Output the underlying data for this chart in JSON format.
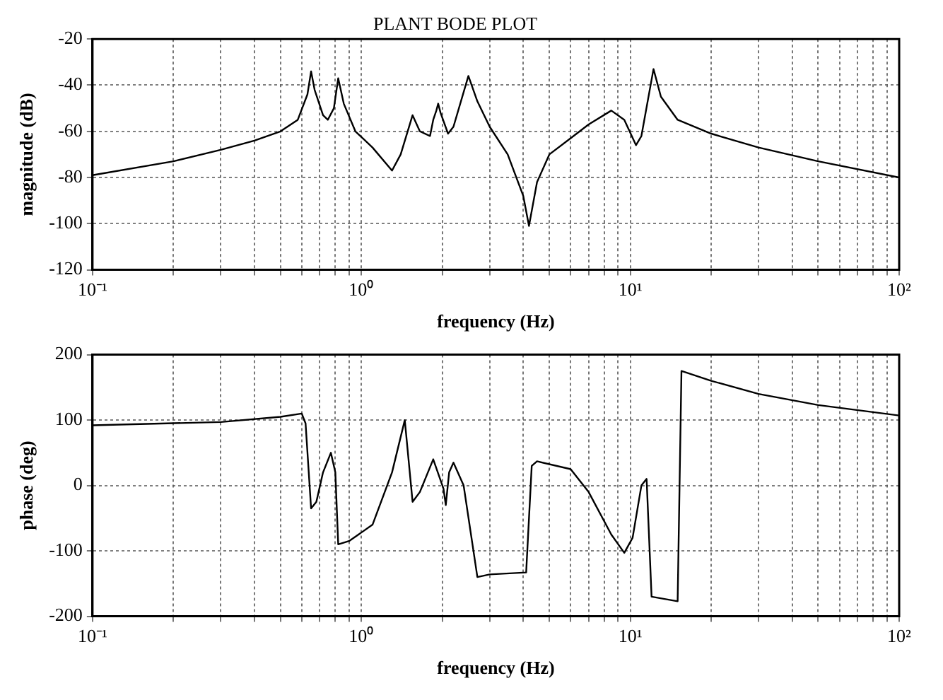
{
  "chart_data": [
    {
      "type": "line",
      "title": "PLANT BODE PLOT",
      "xlabel": "frequency (Hz)",
      "ylabel": "magnitude (dB)",
      "log": "x",
      "grid": true,
      "line_style": "solid",
      "marker": "none",
      "legend": false,
      "xlim": [
        0.1,
        100
      ],
      "xticks": [
        {
          "value": 0.1,
          "label": "10⁻¹"
        },
        {
          "value": 0.2,
          "label": null
        },
        {
          "value": 0.3,
          "label": null
        },
        {
          "value": 0.4,
          "label": null
        },
        {
          "value": 0.5,
          "label": null
        },
        {
          "value": 0.6,
          "label": null
        },
        {
          "value": 0.7,
          "label": null
        },
        {
          "value": 0.8,
          "label": null
        },
        {
          "value": 0.9,
          "label": null
        },
        {
          "value": 1,
          "label": "10⁰"
        },
        {
          "value": 2,
          "label": null
        },
        {
          "value": 3,
          "label": null
        },
        {
          "value": 4,
          "label": null
        },
        {
          "value": 5,
          "label": null
        },
        {
          "value": 6,
          "label": null
        },
        {
          "value": 7,
          "label": null
        },
        {
          "value": 8,
          "label": null
        },
        {
          "value": 9,
          "label": null
        },
        {
          "value": 10,
          "label": "10¹"
        },
        {
          "value": 20,
          "label": null
        },
        {
          "value": 30,
          "label": null
        },
        {
          "value": 40,
          "label": null
        },
        {
          "value": 50,
          "label": null
        },
        {
          "value": 60,
          "label": null
        },
        {
          "value": 70,
          "label": null
        },
        {
          "value": 80,
          "label": null
        },
        {
          "value": 90,
          "label": null
        },
        {
          "value": 100,
          "label": "10²"
        }
      ],
      "ylim": [
        -120,
        -20
      ],
      "yticks": [
        -120,
        -100,
        -80,
        -60,
        -40,
        -20
      ],
      "series": [
        {
          "color": "#000000",
          "x": [
            0.1,
            0.2,
            0.3,
            0.4,
            0.5,
            0.58,
            0.63,
            0.65,
            0.67,
            0.72,
            0.75,
            0.79,
            0.82,
            0.86,
            0.95,
            1.1,
            1.3,
            1.4,
            1.55,
            1.65,
            1.8,
            1.85,
            1.9,
            1.93,
            1.97,
            2.1,
            2.2,
            2.5,
            2.7,
            3.0,
            3.5,
            4.0,
            4.2,
            4.5,
            5,
            6,
            7,
            8.5,
            9.5,
            10.5,
            11,
            12.2,
            13,
            15,
            20,
            30,
            50,
            100
          ],
          "values": [
            -79,
            -73,
            -68,
            -64,
            -60,
            -55,
            -44,
            -34,
            -42,
            -53,
            -55,
            -50,
            -37,
            -48,
            -60,
            -67,
            -77,
            -70,
            -53,
            -60,
            -62,
            -55,
            -51,
            -48,
            -52,
            -61,
            -58,
            -36,
            -47,
            -58,
            -70,
            -88,
            -101,
            -82,
            -70,
            -63,
            -57,
            -51,
            -55,
            -66,
            -62,
            -33,
            -45,
            -55,
            -61,
            -67,
            -73,
            -80
          ]
        }
      ]
    },
    {
      "type": "line",
      "xlabel": "frequency (Hz)",
      "ylabel": "phase (deg)",
      "log": "x",
      "grid": true,
      "line_style": "solid",
      "marker": "none",
      "legend": false,
      "xlim": [
        0.1,
        100
      ],
      "xticks": [
        {
          "value": 0.1,
          "label": "10⁻¹"
        },
        {
          "value": 0.2,
          "label": null
        },
        {
          "value": 0.3,
          "label": null
        },
        {
          "value": 0.4,
          "label": null
        },
        {
          "value": 0.5,
          "label": null
        },
        {
          "value": 0.6,
          "label": null
        },
        {
          "value": 0.7,
          "label": null
        },
        {
          "value": 0.8,
          "label": null
        },
        {
          "value": 0.9,
          "label": null
        },
        {
          "value": 1,
          "label": "10⁰"
        },
        {
          "value": 2,
          "label": null
        },
        {
          "value": 3,
          "label": null
        },
        {
          "value": 4,
          "label": null
        },
        {
          "value": 5,
          "label": null
        },
        {
          "value": 6,
          "label": null
        },
        {
          "value": 7,
          "label": null
        },
        {
          "value": 8,
          "label": null
        },
        {
          "value": 9,
          "label": null
        },
        {
          "value": 10,
          "label": "10¹"
        },
        {
          "value": 20,
          "label": null
        },
        {
          "value": 30,
          "label": null
        },
        {
          "value": 40,
          "label": null
        },
        {
          "value": 50,
          "label": null
        },
        {
          "value": 60,
          "label": null
        },
        {
          "value": 70,
          "label": null
        },
        {
          "value": 80,
          "label": null
        },
        {
          "value": 90,
          "label": null
        },
        {
          "value": 100,
          "label": "10²"
        }
      ],
      "ylim": [
        -200,
        200
      ],
      "yticks": [
        -200,
        -100,
        0,
        100,
        200
      ],
      "series": [
        {
          "color": "#000000",
          "x": [
            0.1,
            0.3,
            0.5,
            0.6,
            0.62,
            0.65,
            0.68,
            0.72,
            0.77,
            0.8,
            0.82,
            0.9,
            1.1,
            1.3,
            1.45,
            1.55,
            1.65,
            1.85,
            2.02,
            2.06,
            2.09,
            2.12,
            2.2,
            2.4,
            2.7,
            3,
            4.1,
            4.3,
            4.5,
            6,
            7,
            8.5,
            9.5,
            10.2,
            11,
            11.5,
            12,
            15,
            15.5,
            20,
            30,
            50,
            100
          ],
          "values": [
            92,
            97,
            105,
            110,
            95,
            -35,
            -25,
            20,
            50,
            20,
            -90,
            -85,
            -60,
            20,
            100,
            -25,
            -10,
            40,
            -5,
            -30,
            -5,
            20,
            35,
            0,
            -140,
            -136,
            -133,
            30,
            37,
            25,
            -10,
            -75,
            -103,
            -80,
            0,
            10,
            -170,
            -177,
            175,
            160,
            140,
            123,
            107
          ]
        }
      ]
    }
  ]
}
